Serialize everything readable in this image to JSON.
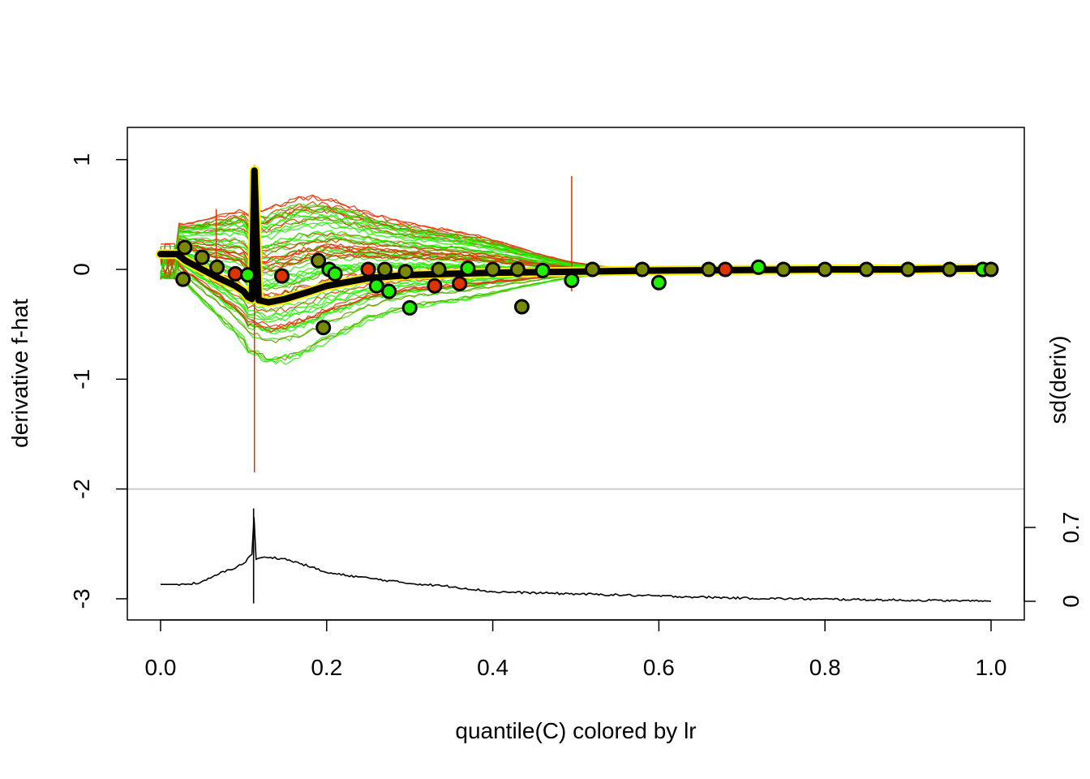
{
  "chart_data": {
    "type": "line",
    "title": "",
    "xlabel": "quantile(C) colored by lr",
    "ylabel": "derivative f-hat",
    "ylabel_right": "sd(deriv)",
    "xlim": [
      0,
      1
    ],
    "ylim": [
      -3.2,
      1.3
    ],
    "x_ticks": [
      "0.0",
      "0.2",
      "0.4",
      "0.6",
      "0.8",
      "1.0"
    ],
    "y_ticks": [
      "1",
      "0",
      "-1",
      "-2",
      "-3"
    ],
    "right_ticks": [
      "0",
      "0.7"
    ],
    "separator_y": -2,
    "colors": {
      "low": "#22ee00",
      "mid": "#7a8a00",
      "high": "#dd3300",
      "mean": "#000000",
      "mean_outline": "#ffee00",
      "separator": "#cccccc"
    },
    "mean_curve": {
      "name": "mean derivative",
      "x": [
        0.0,
        0.02,
        0.03,
        0.05,
        0.07,
        0.09,
        0.1,
        0.105,
        0.11,
        0.113,
        0.118,
        0.13,
        0.15,
        0.18,
        0.2,
        0.25,
        0.3,
        0.35,
        0.4,
        0.5,
        0.6,
        0.7,
        0.8,
        0.9,
        1.0
      ],
      "y": [
        0.14,
        0.14,
        0.08,
        0.0,
        -0.08,
        -0.15,
        -0.2,
        -0.25,
        -0.27,
        0.9,
        -0.28,
        -0.3,
        -0.27,
        -0.2,
        -0.15,
        -0.08,
        -0.05,
        -0.04,
        -0.03,
        -0.02,
        -0.01,
        -0.005,
        0.0,
        0.0,
        0.01
      ]
    },
    "highlighted_points": [
      {
        "x": 0.027,
        "y": -0.09,
        "c": "mid"
      },
      {
        "x": 0.029,
        "y": 0.2,
        "c": "mid"
      },
      {
        "x": 0.05,
        "y": 0.11,
        "c": "mid"
      },
      {
        "x": 0.068,
        "y": 0.02,
        "c": "mid"
      },
      {
        "x": 0.09,
        "y": -0.04,
        "c": "high"
      },
      {
        "x": 0.105,
        "y": -0.05,
        "c": "low"
      },
      {
        "x": 0.146,
        "y": -0.06,
        "c": "high"
      },
      {
        "x": 0.19,
        "y": 0.08,
        "c": "mid"
      },
      {
        "x": 0.196,
        "y": -0.53,
        "c": "mid"
      },
      {
        "x": 0.203,
        "y": 0.0,
        "c": "low"
      },
      {
        "x": 0.21,
        "y": -0.04,
        "c": "low"
      },
      {
        "x": 0.25,
        "y": 0.0,
        "c": "high"
      },
      {
        "x": 0.26,
        "y": -0.15,
        "c": "low"
      },
      {
        "x": 0.27,
        "y": 0.0,
        "c": "mid"
      },
      {
        "x": 0.275,
        "y": -0.2,
        "c": "low"
      },
      {
        "x": 0.295,
        "y": -0.02,
        "c": "mid"
      },
      {
        "x": 0.3,
        "y": -0.35,
        "c": "low"
      },
      {
        "x": 0.33,
        "y": -0.15,
        "c": "high"
      },
      {
        "x": 0.335,
        "y": 0.0,
        "c": "mid"
      },
      {
        "x": 0.36,
        "y": -0.13,
        "c": "high"
      },
      {
        "x": 0.37,
        "y": 0.01,
        "c": "low"
      },
      {
        "x": 0.4,
        "y": 0.0,
        "c": "mid"
      },
      {
        "x": 0.43,
        "y": 0.0,
        "c": "mid"
      },
      {
        "x": 0.435,
        "y": -0.34,
        "c": "mid"
      },
      {
        "x": 0.46,
        "y": -0.01,
        "c": "low"
      },
      {
        "x": 0.495,
        "y": -0.1,
        "c": "low"
      },
      {
        "x": 0.52,
        "y": 0.0,
        "c": "mid"
      },
      {
        "x": 0.58,
        "y": 0.0,
        "c": "mid"
      },
      {
        "x": 0.6,
        "y": -0.12,
        "c": "low"
      },
      {
        "x": 0.66,
        "y": 0.0,
        "c": "mid"
      },
      {
        "x": 0.68,
        "y": 0.0,
        "c": "high"
      },
      {
        "x": 0.72,
        "y": 0.02,
        "c": "low"
      },
      {
        "x": 0.75,
        "y": 0.0,
        "c": "mid"
      },
      {
        "x": 0.8,
        "y": 0.0,
        "c": "mid"
      },
      {
        "x": 0.85,
        "y": 0.0,
        "c": "mid"
      },
      {
        "x": 0.9,
        "y": 0.0,
        "c": "mid"
      },
      {
        "x": 0.95,
        "y": 0.0,
        "c": "mid"
      },
      {
        "x": 0.99,
        "y": 0.0,
        "c": "low"
      },
      {
        "x": 1.0,
        "y": 0.0,
        "c": "mid"
      }
    ],
    "sd_curve": {
      "name": "sd(deriv)",
      "x": [
        0.0,
        0.03,
        0.05,
        0.07,
        0.09,
        0.1,
        0.105,
        0.11,
        0.112,
        0.115,
        0.13,
        0.15,
        0.18,
        0.2,
        0.25,
        0.3,
        0.35,
        0.4,
        0.5,
        0.6,
        0.7,
        0.8,
        0.9,
        1.0
      ],
      "y": [
        0.16,
        0.16,
        0.18,
        0.26,
        0.32,
        0.36,
        0.4,
        0.45,
        0.88,
        0.4,
        0.42,
        0.4,
        0.33,
        0.27,
        0.22,
        0.17,
        0.14,
        0.09,
        0.07,
        0.05,
        0.03,
        0.02,
        0.01,
        0.0
      ]
    },
    "sd_range": [
      0,
      0.7
    ]
  }
}
